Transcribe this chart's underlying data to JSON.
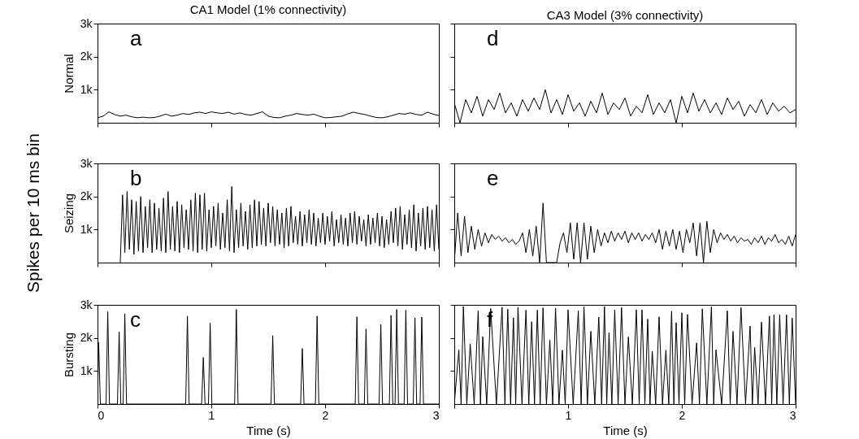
{
  "chart_data": [
    {
      "type": "line",
      "title": "CA1 Model (1% connectivity)",
      "ylabel": "Normal",
      "annotations": [
        "a"
      ],
      "xlim": [
        0,
        3
      ],
      "ylim": [
        0,
        3000
      ],
      "xticks": [
        0,
        1,
        2,
        3
      ],
      "yticks": [
        {
          "value": 1000,
          "label": "1k"
        },
        {
          "value": 2000,
          "label": "2k"
        },
        {
          "value": 3000,
          "label": "3k"
        }
      ],
      "tick_labels": "y",
      "series": [
        {
          "color": "#000000",
          "x": [
            0,
            0.05,
            0.1,
            0.15,
            0.2,
            0.25,
            0.3,
            0.35,
            0.4,
            0.45,
            0.5,
            0.55,
            0.6,
            0.65,
            0.7,
            0.75,
            0.8,
            0.85,
            0.9,
            0.95,
            1.0,
            1.05,
            1.1,
            1.15,
            1.2,
            1.25,
            1.3,
            1.35,
            1.4,
            1.45,
            1.5,
            1.55,
            1.6,
            1.65,
            1.7,
            1.75,
            1.8,
            1.85,
            1.9,
            1.95,
            2.0,
            2.05,
            2.1,
            2.15,
            2.2,
            2.25,
            2.3,
            2.35,
            2.4,
            2.45,
            2.5,
            2.55,
            2.6,
            2.65,
            2.7,
            2.75,
            2.8,
            2.85,
            2.9,
            2.95,
            3.0
          ],
          "values": [
            150,
            200,
            330,
            250,
            200,
            230,
            180,
            150,
            170,
            150,
            160,
            200,
            260,
            200,
            230,
            280,
            250,
            300,
            320,
            280,
            330,
            300,
            280,
            320,
            260,
            300,
            250,
            230,
            280,
            330,
            200,
            160,
            150,
            200,
            230,
            280,
            250,
            230,
            260,
            200,
            150,
            160,
            180,
            200,
            270,
            320,
            280,
            250,
            200,
            160,
            150,
            180,
            230,
            280,
            260,
            300,
            250,
            230,
            320,
            260,
            220
          ]
        }
      ]
    },
    {
      "type": "line",
      "title": "CA3 Model (3% connectivity)",
      "annotations": [
        "d"
      ],
      "xlim": [
        0,
        3
      ],
      "ylim": [
        0,
        3000
      ],
      "xticks": [
        0,
        1,
        2,
        3
      ],
      "yticks": [
        {
          "value": 1000,
          "label": null
        },
        {
          "value": 2000,
          "label": null
        },
        {
          "value": 3000,
          "label": null
        }
      ],
      "tick_labels": false,
      "series": [
        {
          "color": "#000000",
          "x": [
            0,
            0.05,
            0.1,
            0.15,
            0.2,
            0.25,
            0.3,
            0.35,
            0.4,
            0.45,
            0.5,
            0.55,
            0.6,
            0.65,
            0.7,
            0.75,
            0.8,
            0.85,
            0.9,
            0.95,
            1.0,
            1.05,
            1.1,
            1.15,
            1.2,
            1.25,
            1.3,
            1.35,
            1.4,
            1.45,
            1.5,
            1.55,
            1.6,
            1.65,
            1.7,
            1.75,
            1.8,
            1.85,
            1.9,
            1.95,
            2.0,
            2.05,
            2.1,
            2.15,
            2.2,
            2.25,
            2.3,
            2.35,
            2.4,
            2.45,
            2.5,
            2.55,
            2.6,
            2.65,
            2.7,
            2.75,
            2.8,
            2.85,
            2.9,
            2.95,
            3.0
          ],
          "values": [
            600,
            0,
            700,
            300,
            800,
            200,
            700,
            400,
            900,
            300,
            600,
            200,
            700,
            350,
            750,
            400,
            1000,
            300,
            700,
            250,
            850,
            350,
            600,
            200,
            650,
            300,
            900,
            250,
            600,
            400,
            750,
            200,
            500,
            300,
            850,
            250,
            600,
            300,
            700,
            0,
            800,
            300,
            900,
            350,
            700,
            300,
            600,
            250,
            750,
            400,
            650,
            200,
            550,
            300,
            700,
            250,
            600,
            350,
            500,
            300,
            400
          ]
        }
      ]
    },
    {
      "type": "line",
      "ylabel": "Seizing",
      "annotations": [
        "b",
        "Spikes per 10 ms bin"
      ],
      "xlim": [
        0,
        3
      ],
      "ylim": [
        0,
        3000
      ],
      "xticks": [
        0,
        1,
        2,
        3
      ],
      "yticks": [
        {
          "value": 1000,
          "label": "1k"
        },
        {
          "value": 2000,
          "label": "2k"
        },
        {
          "value": 3000,
          "label": "3k"
        }
      ],
      "tick_labels": "y",
      "series": [
        {
          "color": "#000000",
          "x": [
            0.2,
            0.22,
            0.24,
            0.26,
            0.28,
            0.3,
            0.32,
            0.34,
            0.36,
            0.38,
            0.4,
            0.42,
            0.44,
            0.46,
            0.48,
            0.5,
            0.52,
            0.54,
            0.56,
            0.58,
            0.6,
            0.62,
            0.64,
            0.66,
            0.68,
            0.7,
            0.72,
            0.74,
            0.76,
            0.78,
            0.8,
            0.82,
            0.84,
            0.86,
            0.88,
            0.9,
            0.92,
            0.94,
            0.96,
            0.98,
            1.0,
            1.02,
            1.04,
            1.06,
            1.08,
            1.1,
            1.12,
            1.14,
            1.16,
            1.18,
            1.2,
            1.22,
            1.24,
            1.26,
            1.28,
            1.3,
            1.32,
            1.34,
            1.36,
            1.38,
            1.4,
            1.42,
            1.44,
            1.46,
            1.48,
            1.5,
            1.52,
            1.54,
            1.56,
            1.58,
            1.6,
            1.62,
            1.64,
            1.66,
            1.68,
            1.7,
            1.72,
            1.74,
            1.76,
            1.78,
            1.8,
            1.82,
            1.84,
            1.86,
            1.88,
            1.9,
            1.92,
            1.94,
            1.96,
            1.98,
            2.0,
            2.02,
            2.04,
            2.06,
            2.08,
            2.1,
            2.12,
            2.14,
            2.16,
            2.18,
            2.2,
            2.22,
            2.24,
            2.26,
            2.28,
            2.3,
            2.32,
            2.34,
            2.36,
            2.38,
            2.4,
            2.42,
            2.44,
            2.46,
            2.48,
            2.5,
            2.52,
            2.54,
            2.56,
            2.58,
            2.6,
            2.62,
            2.64,
            2.66,
            2.68,
            2.7,
            2.72,
            2.74,
            2.76,
            2.78,
            2.8,
            2.82,
            2.84,
            2.86,
            2.88,
            2.9,
            2.92,
            2.94,
            2.96,
            2.98,
            3.0
          ],
          "values": [
            0,
            2050,
            300,
            2150,
            400,
            1900,
            250,
            1850,
            350,
            2000,
            300,
            1700,
            450,
            1900,
            300,
            1800,
            400,
            1650,
            350,
            1950,
            300,
            2150,
            400,
            1700,
            350,
            1850,
            300,
            1750,
            450,
            1600,
            400,
            1900,
            350,
            2100,
            300,
            2050,
            400,
            2100,
            350,
            1600,
            450,
            1700,
            500,
            1800,
            400,
            1500,
            450,
            1900,
            350,
            2300,
            300,
            1600,
            450,
            1800,
            500,
            1550,
            400,
            1750,
            450,
            1900,
            500,
            1850,
            550,
            1650,
            500,
            1800,
            600,
            1700,
            500,
            1600,
            550,
            1500,
            450,
            1650,
            500,
            1700,
            600,
            1400,
            550,
            1550,
            500,
            1450,
            600,
            1600,
            550,
            1500,
            500,
            1350,
            600,
            1500,
            550,
            1400,
            650,
            1550,
            500,
            1300,
            600,
            1450,
            550,
            1350,
            500,
            1500,
            600,
            1550,
            550,
            1400,
            650,
            1300,
            500,
            1450,
            550,
            1350,
            600,
            1500,
            500,
            1400,
            450,
            1300,
            550,
            1550,
            600,
            1650,
            500,
            1700,
            400,
            1450,
            550,
            1600,
            450,
            1750,
            350,
            1500,
            500,
            1650,
            400,
            1700,
            450,
            1600,
            350,
            1750,
            400
          ]
        }
      ]
    },
    {
      "type": "line",
      "annotations": [
        "e"
      ],
      "xlim": [
        0,
        3
      ],
      "ylim": [
        0,
        3000
      ],
      "xticks": [
        0,
        1,
        2,
        3
      ],
      "yticks": [
        {
          "value": 1000,
          "label": null
        },
        {
          "value": 2000,
          "label": null
        },
        {
          "value": 3000,
          "label": null
        }
      ],
      "tick_labels": false,
      "series": [
        {
          "color": "#000000",
          "x": [
            0,
            0.03,
            0.06,
            0.09,
            0.12,
            0.15,
            0.18,
            0.21,
            0.24,
            0.27,
            0.3,
            0.33,
            0.36,
            0.39,
            0.42,
            0.45,
            0.48,
            0.51,
            0.54,
            0.57,
            0.6,
            0.63,
            0.66,
            0.69,
            0.72,
            0.75,
            0.78,
            0.81,
            0.84,
            0.87,
            0.9,
            0.93,
            0.96,
            0.99,
            1.02,
            1.05,
            1.08,
            1.11,
            1.14,
            1.17,
            1.2,
            1.23,
            1.26,
            1.29,
            1.32,
            1.35,
            1.38,
            1.41,
            1.44,
            1.47,
            1.5,
            1.53,
            1.56,
            1.59,
            1.62,
            1.65,
            1.68,
            1.71,
            1.74,
            1.77,
            1.8,
            1.83,
            1.86,
            1.89,
            1.92,
            1.95,
            1.98,
            2.01,
            2.04,
            2.07,
            2.1,
            2.13,
            2.16,
            2.19,
            2.22,
            2.25,
            2.28,
            2.31,
            2.34,
            2.37,
            2.4,
            2.43,
            2.46,
            2.49,
            2.52,
            2.55,
            2.58,
            2.61,
            2.64,
            2.67,
            2.7,
            2.73,
            2.76,
            2.79,
            2.82,
            2.85,
            2.88,
            2.91,
            2.94,
            2.97,
            3.0
          ],
          "values": [
            0,
            1500,
            200,
            1400,
            300,
            1100,
            400,
            1000,
            500,
            900,
            600,
            850,
            700,
            800,
            650,
            750,
            600,
            700,
            550,
            650,
            900,
            300,
            1000,
            200,
            1100,
            0,
            1800,
            0,
            0,
            0,
            0,
            600,
            900,
            300,
            1200,
            100,
            1200,
            0,
            1200,
            100,
            1100,
            300,
            1000,
            500,
            900,
            600,
            950,
            650,
            900,
            700,
            950,
            600,
            900,
            700,
            900,
            650,
            850,
            700,
            900,
            600,
            1000,
            400,
            950,
            500,
            1000,
            400,
            950,
            300,
            1000,
            600,
            1200,
            200,
            1200,
            0,
            1250,
            300,
            1000,
            600,
            900,
            700,
            850,
            650,
            800,
            600,
            750,
            650,
            700,
            550,
            750,
            600,
            800,
            550,
            750,
            650,
            850,
            600,
            700,
            550,
            800,
            500,
            850
          ]
        }
      ]
    },
    {
      "type": "line",
      "ylabel": "Bursting",
      "xlabel": "Time (s)",
      "annotations": [
        "c"
      ],
      "xlim": [
        0,
        3
      ],
      "ylim": [
        0,
        3000
      ],
      "xticks": [
        0,
        1,
        2,
        3
      ],
      "yticks": [
        {
          "value": 1000,
          "label": "1k"
        },
        {
          "value": 2000,
          "label": "2k"
        },
        {
          "value": 3000,
          "label": "3k"
        }
      ],
      "series": [
        {
          "color": "#000000",
          "x": [
            0,
            0.01,
            0.025,
            0.075,
            0.09,
            0.105,
            0.175,
            0.19,
            0.205,
            0.225,
            0.24,
            0.255,
            0.775,
            0.79,
            0.805,
            0.915,
            0.93,
            0.945,
            0.975,
            0.99,
            1.005,
            1.205,
            1.22,
            1.235,
            1.525,
            1.54,
            1.555,
            1.785,
            1.8,
            1.815,
            1.915,
            1.93,
            1.945,
            2.265,
            2.28,
            2.295,
            2.345,
            2.36,
            2.375,
            2.475,
            2.49,
            2.505,
            2.565,
            2.58,
            2.595,
            2.615,
            2.63,
            2.645,
            2.695,
            2.71,
            2.725,
            2.775,
            2.79,
            2.805,
            2.835,
            2.85,
            2.865,
            3.0
          ],
          "values": [
            0,
            1860,
            0,
            0,
            2790,
            0,
            0,
            2180,
            0,
            0,
            2730,
            0,
            0,
            2660,
            0,
            0,
            1410,
            0,
            0,
            2450,
            0,
            0,
            2860,
            0,
            0,
            2070,
            0,
            0,
            1680,
            0,
            0,
            2660,
            0,
            0,
            2640,
            0,
            0,
            2270,
            0,
            0,
            2410,
            0,
            0,
            2680,
            0,
            0,
            2860,
            0,
            0,
            2840,
            0,
            0,
            2610,
            0,
            0,
            2630,
            0,
            0
          ]
        }
      ]
    },
    {
      "type": "line",
      "xlabel": "Time (s)",
      "annotations": [
        "f"
      ],
      "xlim": [
        0,
        3
      ],
      "ylim": [
        0,
        3000
      ],
      "xticks": [
        {
          "value": 0,
          "label": null
        },
        1,
        2,
        3
      ],
      "yticks": [
        {
          "value": 1000,
          "label": null
        },
        {
          "value": 2000,
          "label": null
        },
        {
          "value": 3000,
          "label": null
        }
      ],
      "tick_labels": "x",
      "series": [
        {
          "color": "#000000",
          "x": [
            0,
            0.04,
            0.06,
            0.08,
            0.11,
            0.14,
            0.175,
            0.21,
            0.23,
            0.25,
            0.285,
            0.32,
            0.37,
            0.42,
            0.445,
            0.47,
            0.495,
            0.52,
            0.54,
            0.56,
            0.595,
            0.63,
            0.655,
            0.68,
            0.705,
            0.73,
            0.755,
            0.78,
            0.81,
            0.84,
            0.865,
            0.89,
            0.92,
            0.95,
            0.975,
            1.0,
            1.045,
            1.09,
            1.115,
            1.14,
            1.17,
            1.2,
            1.235,
            1.27,
            1.295,
            1.32,
            1.34,
            1.36,
            1.385,
            1.41,
            1.44,
            1.47,
            1.5,
            1.53,
            1.565,
            1.6,
            1.625,
            1.65,
            1.675,
            1.7,
            1.72,
            1.74,
            1.77,
            1.8,
            1.83,
            1.86,
            1.885,
            1.91,
            1.93,
            1.95,
            1.975,
            2.0,
            2.025,
            2.05,
            2.09,
            2.13,
            2.155,
            2.18,
            2.22,
            2.26,
            2.28,
            2.3,
            2.35,
            2.4,
            2.425,
            2.45,
            2.485,
            2.52,
            2.56,
            2.6,
            2.62,
            2.64,
            2.67,
            2.7,
            2.735,
            2.77,
            2.79,
            2.81,
            2.835,
            2.86,
            2.89,
            2.92,
            2.945,
            2.97,
            3.0
          ],
          "values": [
            0,
            1640,
            0,
            2950,
            0,
            1820,
            0,
            2820,
            0,
            2040,
            0,
            2890,
            0,
            2930,
            0,
            2870,
            0,
            2610,
            0,
            2930,
            0,
            2840,
            0,
            2490,
            0,
            2840,
            0,
            2910,
            0,
            1930,
            0,
            2900,
            0,
            1630,
            0,
            2850,
            0,
            2820,
            0,
            2950,
            0,
            2200,
            0,
            2630,
            0,
            2950,
            0,
            2160,
            0,
            2850,
            0,
            2920,
            0,
            2030,
            0,
            2850,
            0,
            2850,
            0,
            2570,
            0,
            1600,
            0,
            2640,
            0,
            1630,
            0,
            2810,
            0,
            2460,
            0,
            2760,
            0,
            2710,
            0,
            1850,
            0,
            2880,
            0,
            2950,
            0,
            1640,
            0,
            2820,
            0,
            2200,
            0,
            2920,
            0,
            2360,
            0,
            1710,
            0,
            2480,
            0,
            2660,
            0,
            2700,
            0,
            2700,
            0,
            2700,
            0,
            2600,
            0
          ]
        }
      ]
    }
  ]
}
